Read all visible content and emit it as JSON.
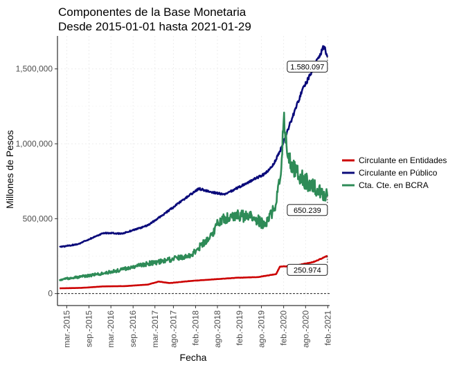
{
  "chart_data": {
    "type": "line",
    "title": "Componentes de la Base Monetaria",
    "subtitle": "Desde 2015-01-01 hasta 2021-01-29",
    "xlabel": "Fecha",
    "ylabel": "Millones de Pesos",
    "x_range": [
      "2015-01-01",
      "2021-01-29"
    ],
    "ylim": [
      -80000,
      1720000
    ],
    "y_ticks": [
      0,
      500000,
      1000000,
      1500000
    ],
    "y_tick_labels": [
      "0",
      "500,000",
      "1,000,000",
      "1,500,000"
    ],
    "x_ticks": [
      "2015-03-01",
      "2015-09-01",
      "2016-03-01",
      "2016-09-01",
      "2017-03-01",
      "2017-08-01",
      "2018-02-01",
      "2018-08-01",
      "2019-02-01",
      "2019-08-01",
      "2020-02-01",
      "2020-08-01",
      "2021-02-01"
    ],
    "x_tick_labels": [
      "mar.-2015",
      "sep.-2015",
      "mar.-2016",
      "sep.-2016",
      "mar.-2017",
      "ago.-2017",
      "feb.-2018",
      "ago.-2018",
      "feb.-2019",
      "ago.-2019",
      "feb.-2020",
      "ago.-2020",
      "feb.-2021"
    ],
    "grid": true,
    "legend_position": "right",
    "zero_line": "dashed",
    "series": [
      {
        "name": "Circulante en Entidades",
        "color": "#cc0000",
        "points": [
          [
            "2015-01-01",
            35000
          ],
          [
            "2015-07-01",
            38000
          ],
          [
            "2016-01-01",
            48000
          ],
          [
            "2016-07-01",
            50000
          ],
          [
            "2017-01-01",
            60000
          ],
          [
            "2017-04-01",
            80000
          ],
          [
            "2017-07-01",
            70000
          ],
          [
            "2018-01-01",
            85000
          ],
          [
            "2018-07-01",
            95000
          ],
          [
            "2019-01-01",
            105000
          ],
          [
            "2019-07-01",
            110000
          ],
          [
            "2019-12-01",
            130000
          ],
          [
            "2020-01-01",
            180000
          ],
          [
            "2020-05-01",
            185000
          ],
          [
            "2020-10-01",
            210000
          ],
          [
            "2021-01-29",
            250974
          ]
        ],
        "last_label": "250.974"
      },
      {
        "name": "Circulante en Público",
        "color": "#0a0a7a",
        "points": [
          [
            "2015-01-01",
            310000
          ],
          [
            "2015-06-01",
            330000
          ],
          [
            "2016-01-01",
            405000
          ],
          [
            "2016-06-01",
            400000
          ],
          [
            "2017-01-01",
            455000
          ],
          [
            "2017-06-01",
            540000
          ],
          [
            "2017-12-01",
            650000
          ],
          [
            "2018-03-01",
            700000
          ],
          [
            "2018-06-01",
            680000
          ],
          [
            "2018-10-01",
            660000
          ],
          [
            "2019-01-01",
            700000
          ],
          [
            "2019-05-01",
            750000
          ],
          [
            "2019-09-01",
            800000
          ],
          [
            "2019-11-01",
            850000
          ],
          [
            "2020-01-01",
            950000
          ],
          [
            "2020-04-01",
            1150000
          ],
          [
            "2020-07-01",
            1350000
          ],
          [
            "2020-10-01",
            1500000
          ],
          [
            "2021-01-01",
            1650000
          ],
          [
            "2021-01-29",
            1580097
          ]
        ],
        "last_label": "1.580.097"
      },
      {
        "name": "Cta. Cte. en BCRA",
        "color": "#2e8b57",
        "points": [
          [
            "2015-01-01",
            95000
          ],
          [
            "2015-06-01",
            110000
          ],
          [
            "2016-01-01",
            135000
          ],
          [
            "2016-06-01",
            160000
          ],
          [
            "2017-01-01",
            200000
          ],
          [
            "2017-06-01",
            220000
          ],
          [
            "2018-01-01",
            260000
          ],
          [
            "2018-06-01",
            380000
          ],
          [
            "2018-09-01",
            500000
          ],
          [
            "2019-01-01",
            520000
          ],
          [
            "2019-06-01",
            510000
          ],
          [
            "2019-09-01",
            450000
          ],
          [
            "2019-12-01",
            600000
          ],
          [
            "2020-01-01",
            750000
          ],
          [
            "2020-02-01",
            1150000
          ],
          [
            "2020-04-01",
            850000
          ],
          [
            "2020-08-01",
            750000
          ],
          [
            "2021-01-29",
            650239
          ]
        ],
        "last_label": "650.239"
      }
    ]
  }
}
